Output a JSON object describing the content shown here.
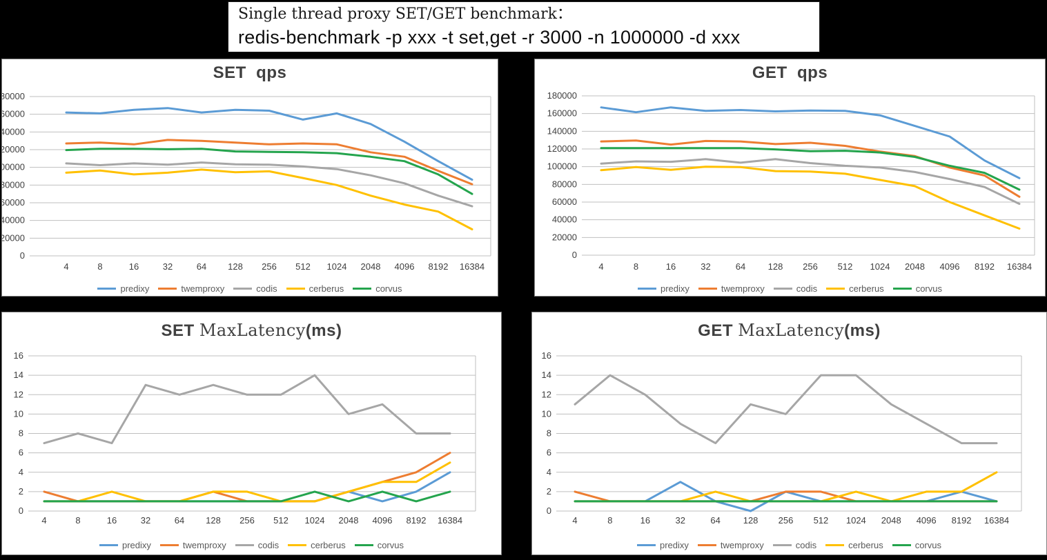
{
  "title_box": {
    "line1": "Single thread proxy SET/GET benchmark：",
    "line2": "redis-benchmark -p xxx -t set,get -r 3000 -n 1000000 -d xxx"
  },
  "colors": {
    "predixy": "#5B9BD5",
    "twemproxy": "#ED7D31",
    "codis": "#A6A6A6",
    "cerberus": "#FFC000",
    "corvus": "#24A44D",
    "gridline": "#BFBFBF",
    "axis_text": "#3f3f3f",
    "legend_text": "#595959",
    "title_text": "#404040"
  },
  "legend": [
    "predixy",
    "twemproxy",
    "codis",
    "cerberus",
    "corvus"
  ],
  "chart_data": [
    {
      "id": "set-qps",
      "type": "line",
      "title": "SET  qps",
      "title_parts": [
        {
          "text": "SET  qps",
          "style": "b"
        }
      ],
      "xlabel": "",
      "ylabel": "",
      "ylim": [
        0,
        180000
      ],
      "ystep": 20000,
      "grid": true,
      "legend_position": "bottom",
      "categories": [
        "4",
        "8",
        "16",
        "32",
        "64",
        "128",
        "256",
        "512",
        "1024",
        "2048",
        "4096",
        "8192",
        "16384"
      ],
      "series": [
        {
          "name": "predixy",
          "values": [
            162000,
            161000,
            165000,
            167000,
            162000,
            165000,
            164000,
            154000,
            161000,
            149000,
            129000,
            107000,
            86000
          ]
        },
        {
          "name": "twemproxy",
          "values": [
            127000,
            128000,
            126000,
            131000,
            130000,
            128000,
            126000,
            127000,
            126000,
            117000,
            112000,
            96000,
            81000
          ]
        },
        {
          "name": "codis",
          "values": [
            104500,
            102500,
            104500,
            103000,
            105500,
            103500,
            103000,
            101000,
            98000,
            91000,
            82000,
            68000,
            56000
          ]
        },
        {
          "name": "cerberus",
          "values": [
            94000,
            96500,
            92000,
            94000,
            97500,
            94500,
            95500,
            88000,
            80000,
            68000,
            58000,
            50000,
            30000
          ]
        },
        {
          "name": "corvus",
          "values": [
            119500,
            121000,
            121000,
            120500,
            121000,
            118000,
            117500,
            117000,
            116000,
            112000,
            107000,
            92000,
            70000
          ]
        }
      ]
    },
    {
      "id": "get-qps",
      "type": "line",
      "title": "GET  qps",
      "title_parts": [
        {
          "text": "GET  qps",
          "style": "b"
        }
      ],
      "xlabel": "",
      "ylabel": "",
      "ylim": [
        0,
        180000
      ],
      "ystep": 20000,
      "grid": true,
      "legend_position": "bottom",
      "categories": [
        "4",
        "8",
        "16",
        "32",
        "64",
        "128",
        "256",
        "512",
        "1024",
        "2048",
        "4096",
        "8192",
        "16384"
      ],
      "series": [
        {
          "name": "predixy",
          "values": [
            167000,
            161500,
            167000,
            163000,
            164000,
            162500,
            163500,
            163000,
            158000,
            146000,
            134000,
            107000,
            87000
          ]
        },
        {
          "name": "twemproxy",
          "values": [
            128500,
            129500,
            125000,
            129000,
            128500,
            125500,
            127000,
            123500,
            117000,
            112000,
            99000,
            90000,
            66000
          ]
        },
        {
          "name": "codis",
          "values": [
            103500,
            106000,
            105500,
            108500,
            104500,
            108500,
            104000,
            101000,
            99000,
            94000,
            86000,
            77000,
            58000
          ]
        },
        {
          "name": "cerberus",
          "values": [
            96000,
            99500,
            96500,
            100000,
            99500,
            95000,
            94500,
            92000,
            85000,
            78000,
            60000,
            45000,
            30000
          ]
        },
        {
          "name": "corvus",
          "values": [
            121000,
            121000,
            121000,
            121000,
            121000,
            119500,
            117500,
            118000,
            116000,
            111000,
            101000,
            93000,
            74000
          ]
        }
      ]
    },
    {
      "id": "set-maxlatency",
      "type": "line",
      "title": "SET MaxLatency(ms)",
      "title_parts": [
        {
          "text": "SET ",
          "style": "b"
        },
        {
          "text": "MaxLatency",
          "style": "serif"
        },
        {
          "text": "(ms)",
          "style": "b"
        }
      ],
      "xlabel": "",
      "ylabel": "",
      "ylim": [
        0,
        16
      ],
      "ystep": 2,
      "grid": true,
      "legend_position": "bottom",
      "categories": [
        "4",
        "8",
        "16",
        "32",
        "64",
        "128",
        "256",
        "512",
        "1024",
        "2048",
        "4096",
        "8192",
        "16384"
      ],
      "series": [
        {
          "name": "predixy",
          "values": [
            1,
            1,
            1,
            1,
            1,
            1,
            1,
            1,
            1,
            2,
            1,
            2,
            4
          ]
        },
        {
          "name": "twemproxy",
          "values": [
            2,
            1,
            1,
            1,
            1,
            2,
            1,
            1,
            1,
            2,
            3,
            4,
            6
          ]
        },
        {
          "name": "codis",
          "values": [
            7,
            8,
            7,
            13,
            12,
            13,
            12,
            12,
            14,
            10,
            11,
            8,
            8
          ]
        },
        {
          "name": "cerberus",
          "values": [
            1,
            1,
            2,
            1,
            1,
            2,
            2,
            1,
            1,
            2,
            3,
            3,
            5
          ]
        },
        {
          "name": "corvus",
          "values": [
            1,
            1,
            1,
            1,
            1,
            1,
            1,
            1,
            2,
            1,
            2,
            1,
            2
          ]
        }
      ]
    },
    {
      "id": "get-maxlatency",
      "type": "line",
      "title": "GET MaxLatency(ms)",
      "title_parts": [
        {
          "text": "GET ",
          "style": "b"
        },
        {
          "text": "MaxLatency",
          "style": "serif"
        },
        {
          "text": "(ms)",
          "style": "b"
        }
      ],
      "xlabel": "",
      "ylabel": "",
      "ylim": [
        0,
        16
      ],
      "ystep": 2,
      "grid": true,
      "legend_position": "bottom",
      "categories": [
        "4",
        "8",
        "16",
        "32",
        "64",
        "128",
        "256",
        "512",
        "1024",
        "2048",
        "4096",
        "8192",
        "16384"
      ],
      "series": [
        {
          "name": "predixy",
          "values": [
            1,
            1,
            1,
            3,
            1,
            0,
            2,
            1,
            1,
            1,
            1,
            2,
            1
          ]
        },
        {
          "name": "twemproxy",
          "values": [
            2,
            1,
            1,
            1,
            1,
            1,
            2,
            2,
            1,
            1,
            1,
            1,
            1
          ]
        },
        {
          "name": "codis",
          "values": [
            11,
            14,
            12,
            9,
            7,
            11,
            10,
            14,
            14,
            11,
            9,
            7,
            7
          ]
        },
        {
          "name": "cerberus",
          "values": [
            1,
            1,
            1,
            1,
            2,
            1,
            1,
            1,
            2,
            1,
            2,
            2,
            4
          ]
        },
        {
          "name": "corvus",
          "values": [
            1,
            1,
            1,
            1,
            1,
            1,
            1,
            1,
            1,
            1,
            1,
            1,
            1
          ]
        }
      ]
    }
  ]
}
